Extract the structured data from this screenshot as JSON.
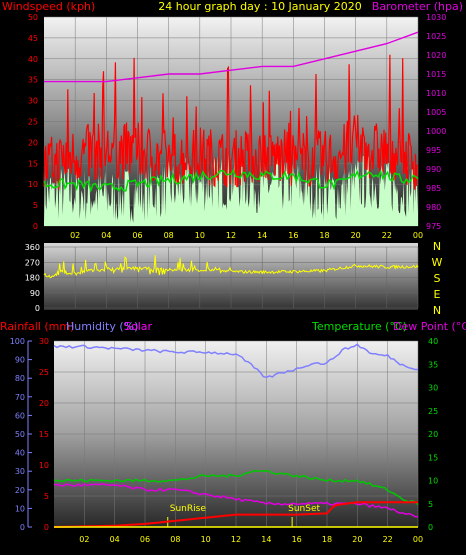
{
  "header": {
    "title": "24 hour graph day : 10 January 2020",
    "left_label": "Windspeed (kph)",
    "right_label": "Barometer (hpa)"
  },
  "colors": {
    "background": "#000000",
    "windspeed": "#ff0000",
    "windavg": "#00dd00",
    "gust_fill": "#c8ffc8",
    "barometer": "#e000e0",
    "direction": "#ffff00",
    "rainfall": "#ff0000",
    "humidity": "#8080ff",
    "solar": "#ff00ff",
    "temperature": "#00c800",
    "dewpoint": "#e000e0",
    "sun": "#ffff00"
  },
  "chart_data": [
    {
      "type": "line",
      "title": "24 hour graph day : 10 January 2020",
      "xlabel": "",
      "x_ticks": [
        "02",
        "04",
        "06",
        "08",
        "10",
        "12",
        "14",
        "16",
        "18",
        "20",
        "22",
        "00"
      ],
      "ylabel": "Windspeed (kph)",
      "ylim": [
        0,
        50
      ],
      "y_ticks": [
        0,
        5,
        10,
        15,
        20,
        25,
        30,
        35,
        40,
        45,
        50
      ],
      "y2label": "Barometer (hpa)",
      "y2lim": [
        975,
        1030
      ],
      "y2_ticks": [
        975,
        980,
        985,
        990,
        995,
        1000,
        1005,
        1010,
        1015,
        1020,
        1025,
        1030
      ],
      "series": [
        {
          "name": "Windspeed",
          "axis": "left",
          "x": [
            0,
            2,
            4,
            6,
            8,
            10,
            12,
            14,
            16,
            18,
            19,
            20,
            21,
            22,
            23,
            24
          ],
          "values": [
            14,
            17,
            18,
            18,
            16,
            17,
            16,
            17,
            16,
            16,
            17,
            20,
            18,
            18,
            17,
            15
          ]
        },
        {
          "name": "Windspeed average",
          "axis": "left",
          "x": [
            0,
            2,
            4,
            6,
            8,
            10,
            12,
            14,
            16,
            18,
            19,
            20,
            21,
            22,
            23,
            24
          ],
          "values": [
            10,
            10,
            9,
            10,
            11,
            12,
            13,
            12,
            12,
            10,
            10,
            12,
            13,
            12,
            11,
            12
          ]
        },
        {
          "name": "Barometer",
          "axis": "right",
          "x": [
            0,
            2,
            4,
            6,
            8,
            10,
            12,
            14,
            16,
            18,
            20,
            22,
            24
          ],
          "values": [
            1013,
            1013,
            1013,
            1014,
            1015,
            1015,
            1016,
            1017,
            1017,
            1019,
            1021,
            1023,
            1026
          ]
        }
      ]
    },
    {
      "type": "line",
      "title": "",
      "ylim": [
        0,
        360
      ],
      "y_ticks": [
        0,
        90,
        180,
        270,
        360
      ],
      "y2_ticks": [
        "N",
        "W",
        "S",
        "E",
        "N"
      ],
      "series": [
        {
          "name": "Wind direction",
          "x": [
            0,
            0.5,
            1,
            2,
            3,
            4,
            6,
            8,
            10,
            12,
            14,
            16,
            18,
            20,
            22,
            24
          ],
          "values": [
            200,
            180,
            215,
            200,
            220,
            225,
            235,
            225,
            225,
            215,
            212,
            215,
            220,
            250,
            242,
            245
          ]
        }
      ]
    },
    {
      "type": "line",
      "title": "",
      "ylabel": "Rainfall (mm)",
      "ylim": [
        0,
        30
      ],
      "y_ticks": [
        0,
        5,
        10,
        15,
        20,
        25,
        30
      ],
      "humidity_ticks": [
        0,
        10,
        20,
        30,
        40,
        50,
        60,
        70,
        80,
        90,
        100
      ],
      "y2label": "Temperature (°C)",
      "y2lim": [
        0,
        40
      ],
      "y2_ticks": [
        0,
        5,
        10,
        15,
        20,
        25,
        30,
        35,
        40
      ],
      "labels": {
        "rainfall": "Rainfall (mm)",
        "humidity": "Humidity (%)",
        "solar": "Solar",
        "temperature": "Temperature (°C)",
        "dewpoint": "Dew Point (°C)",
        "sunrise": "SunRise",
        "sunset": "SunSet"
      },
      "sunrise_hour": 7.5,
      "sunset_hour": 15.7,
      "series": [
        {
          "name": "Humidity",
          "axis": "humidity",
          "x": [
            0,
            2,
            4,
            6,
            8,
            10,
            12,
            13,
            14,
            15,
            16,
            17,
            18,
            19,
            20,
            21,
            22,
            23,
            24
          ],
          "values": [
            97,
            97,
            96,
            95,
            94,
            94,
            93,
            87,
            80,
            83,
            85,
            88,
            88,
            95,
            98,
            93,
            92,
            87,
            85
          ]
        },
        {
          "name": "Temperature",
          "axis": "right",
          "x": [
            0,
            2,
            4,
            6,
            8,
            10,
            12,
            13,
            14,
            16,
            18,
            20,
            22,
            23,
            24
          ],
          "values": [
            10,
            10,
            10,
            10,
            10,
            11,
            11,
            12,
            12,
            11,
            10,
            10,
            8,
            6,
            5
          ]
        },
        {
          "name": "Dew Point",
          "axis": "right",
          "x": [
            0,
            2,
            4,
            6,
            8,
            10,
            12,
            14,
            16,
            18,
            20,
            22,
            23,
            24
          ],
          "values": [
            9,
            9,
            9,
            8,
            8,
            7,
            6,
            5,
            5,
            5,
            5,
            4,
            3,
            2
          ]
        },
        {
          "name": "Rainfall",
          "axis": "left",
          "x": [
            0,
            4,
            6,
            8,
            10,
            12,
            14,
            16,
            18,
            18.5,
            20,
            22,
            23,
            24
          ],
          "values": [
            0,
            0.2,
            0.5,
            1,
            1.5,
            2,
            2,
            2,
            2.2,
            3.5,
            4,
            4,
            4,
            4
          ]
        },
        {
          "name": "Solar",
          "axis": "left",
          "x": [
            0,
            24
          ],
          "values": [
            0,
            0
          ]
        }
      ]
    }
  ]
}
